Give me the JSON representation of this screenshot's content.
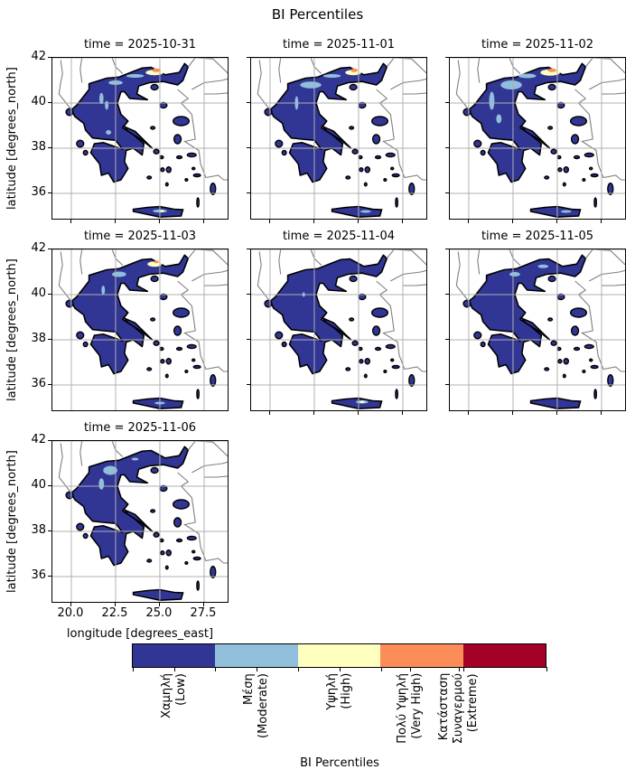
{
  "title": "BI Percentiles",
  "panels": [
    {
      "time": "time = 2025-10-31"
    },
    {
      "time": "time = 2025-11-01"
    },
    {
      "time": "time = 2025-11-02"
    },
    {
      "time": "time = 2025-11-03"
    },
    {
      "time": "time = 2025-11-04"
    },
    {
      "time": "time = 2025-11-05"
    },
    {
      "time": "time = 2025-11-06"
    }
  ],
  "y_axis": {
    "label": "latitude [degrees_north]",
    "ticks": [
      "42",
      "40",
      "38",
      "36"
    ],
    "range": [
      34.8,
      42
    ]
  },
  "x_axis": {
    "label": "longitude [degrees_east]",
    "ticks": [
      "20.0",
      "22.5",
      "25.0",
      "27.5"
    ],
    "range": [
      18.93,
      29.0
    ]
  },
  "colorbar": {
    "label": "BI Percentiles",
    "categories": [
      {
        "label": "Χαμηλή\n(Low)",
        "color": "#313695"
      },
      {
        "label": "Μέση\n(Moderate)",
        "color": "#91bfdb"
      },
      {
        "label": "Υψηλή\n(High)",
        "color": "#ffffbf"
      },
      {
        "label": "Πολύ Υψηλή\n(Very High)",
        "color": "#fc8d59"
      },
      {
        "label": "Κατάσταση\nΣυναγερμού\n(Extreme)",
        "color": "#a50026"
      }
    ]
  },
  "map_colors": {
    "coastline": "#000000",
    "borders": "#808080",
    "grid": "#b0b0b0"
  }
}
